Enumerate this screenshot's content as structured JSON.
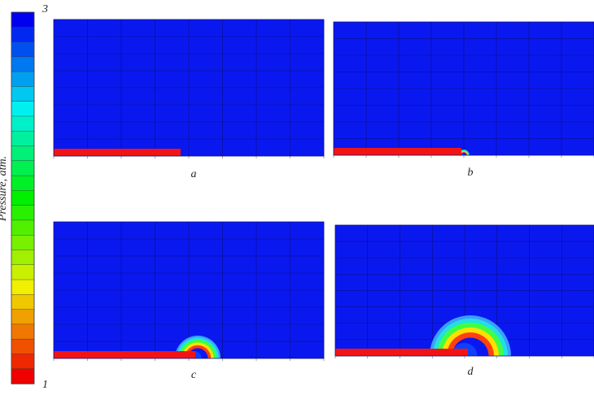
{
  "colorbar": {
    "title": "Pressure, atm.",
    "max_label": "3",
    "min_label": "1"
  },
  "panels": [
    {
      "label": "a"
    },
    {
      "label": "b"
    },
    {
      "label": "c"
    },
    {
      "label": "d"
    }
  ]
}
